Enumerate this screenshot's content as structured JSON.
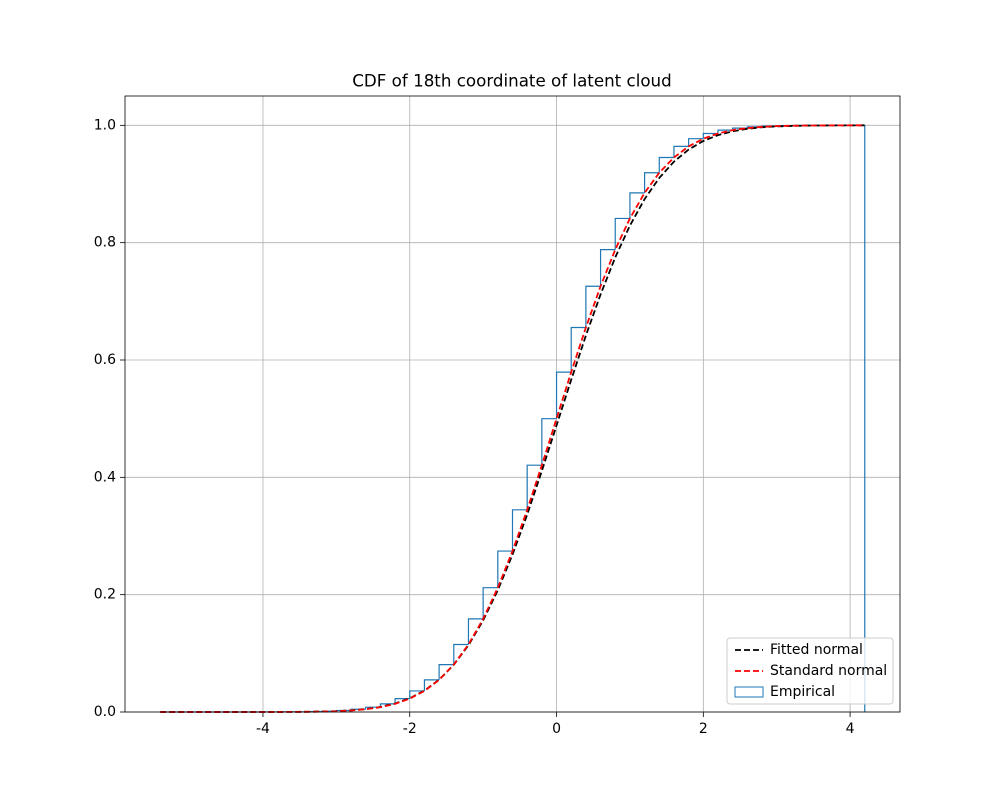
{
  "chart_data": {
    "type": "line",
    "title": "CDF of 18th coordinate of latent cloud",
    "x": [
      -5.4,
      -5.2,
      -5.0,
      -4.8,
      -4.6,
      -4.4,
      -4.2,
      -4.0,
      -3.8,
      -3.6,
      -3.4,
      -3.2,
      -3.0,
      -2.8,
      -2.6,
      -2.4,
      -2.2,
      -2.0,
      -1.8,
      -1.6,
      -1.4,
      -1.2,
      -1.0,
      -0.8,
      -0.6,
      -0.4,
      -0.2,
      0,
      0.2,
      0.4,
      0.6,
      0.8,
      1.0,
      1.2,
      1.4,
      1.6,
      1.8,
      2.0,
      2.2,
      2.4,
      2.6,
      2.8,
      3.0,
      3.2,
      3.4,
      3.6,
      3.8,
      4.0,
      4.2
    ],
    "series": [
      {
        "name": "Fitted normal",
        "color": "#000000",
        "dash": true,
        "values": [
          0,
          0,
          0,
          0,
          0,
          0,
          0,
          0,
          0.0001,
          0.0002,
          0.0004,
          0.0008,
          0.0015,
          0.0028,
          0.005,
          0.0086,
          0.0144,
          0.0233,
          0.0364,
          0.055,
          0.0805,
          0.1139,
          0.1562,
          0.2078,
          0.2683,
          0.3365,
          0.411,
          0.4884,
          0.5663,
          0.6417,
          0.7118,
          0.7749,
          0.8292,
          0.8743,
          0.9104,
          0.9381,
          0.9587,
          0.9733,
          0.9833,
          0.9899,
          0.9941,
          0.9967,
          0.9982,
          0.999,
          0.9995,
          0.9998,
          0.9999,
          0.9999,
          1.0
        ]
      },
      {
        "name": "Standard normal",
        "color": "#ff0000",
        "dash": true,
        "values": [
          0,
          0,
          0,
          0,
          0,
          0,
          0,
          0,
          0.0001,
          0.0002,
          0.0003,
          0.0007,
          0.0013,
          0.0026,
          0.0047,
          0.0082,
          0.0139,
          0.0228,
          0.0359,
          0.0548,
          0.0808,
          0.1151,
          0.1587,
          0.2119,
          0.2743,
          0.3446,
          0.4207,
          0.5,
          0.5793,
          0.6554,
          0.7257,
          0.7881,
          0.8413,
          0.8849,
          0.9192,
          0.9452,
          0.9641,
          0.9772,
          0.9861,
          0.9918,
          0.9953,
          0.9974,
          0.9987,
          0.9993,
          0.9997,
          0.9998,
          0.9999,
          1.0,
          1.0
        ]
      }
    ],
    "histogram": {
      "name": "Empirical",
      "color": "#1f77b4",
      "bins": [
        -5.4,
        -5.2,
        -5.0,
        -4.8,
        -4.6,
        -4.4,
        -4.2,
        -4.0,
        -3.8,
        -3.6,
        -3.4,
        -3.2,
        -3.0,
        -2.8,
        -2.6,
        -2.4,
        -2.2,
        -2.0,
        -1.8,
        -1.6,
        -1.4,
        -1.2,
        -1.0,
        -0.8,
        -0.6,
        -0.4,
        -0.2,
        0,
        0.2,
        0.4,
        0.6,
        0.8,
        1.0,
        1.2,
        1.4,
        1.6,
        1.8,
        2.0,
        2.2,
        2.4,
        2.6,
        2.8,
        3.0,
        3.2,
        3.4,
        3.6,
        3.8,
        4.0,
        4.2
      ],
      "values": [
        0,
        0,
        0,
        0,
        0,
        0,
        0,
        0.0001,
        0.0002,
        0.0003,
        0.0007,
        0.0013,
        0.0026,
        0.0047,
        0.0082,
        0.0139,
        0.0228,
        0.0359,
        0.0548,
        0.0808,
        0.1151,
        0.1587,
        0.2119,
        0.2743,
        0.3446,
        0.4207,
        0.5,
        0.5793,
        0.6554,
        0.7257,
        0.7881,
        0.8413,
        0.8849,
        0.9192,
        0.9452,
        0.9641,
        0.9772,
        0.9861,
        0.9918,
        0.9953,
        0.9974,
        0.9987,
        0.9993,
        0.9997,
        0.9998,
        0.9999,
        1.0,
        1.0
      ]
    },
    "xlim": [
      -5.88,
      4.68
    ],
    "ylim": [
      0,
      1.05
    ],
    "xticks": [
      -4,
      -2,
      0,
      2,
      4
    ],
    "yticks": [
      {
        "value": 0,
        "label": "0.0"
      },
      0.2,
      0.4,
      0.6,
      0.8,
      {
        "value": 1,
        "label": "1.0"
      }
    ],
    "grid": true,
    "legend": "lower right"
  }
}
